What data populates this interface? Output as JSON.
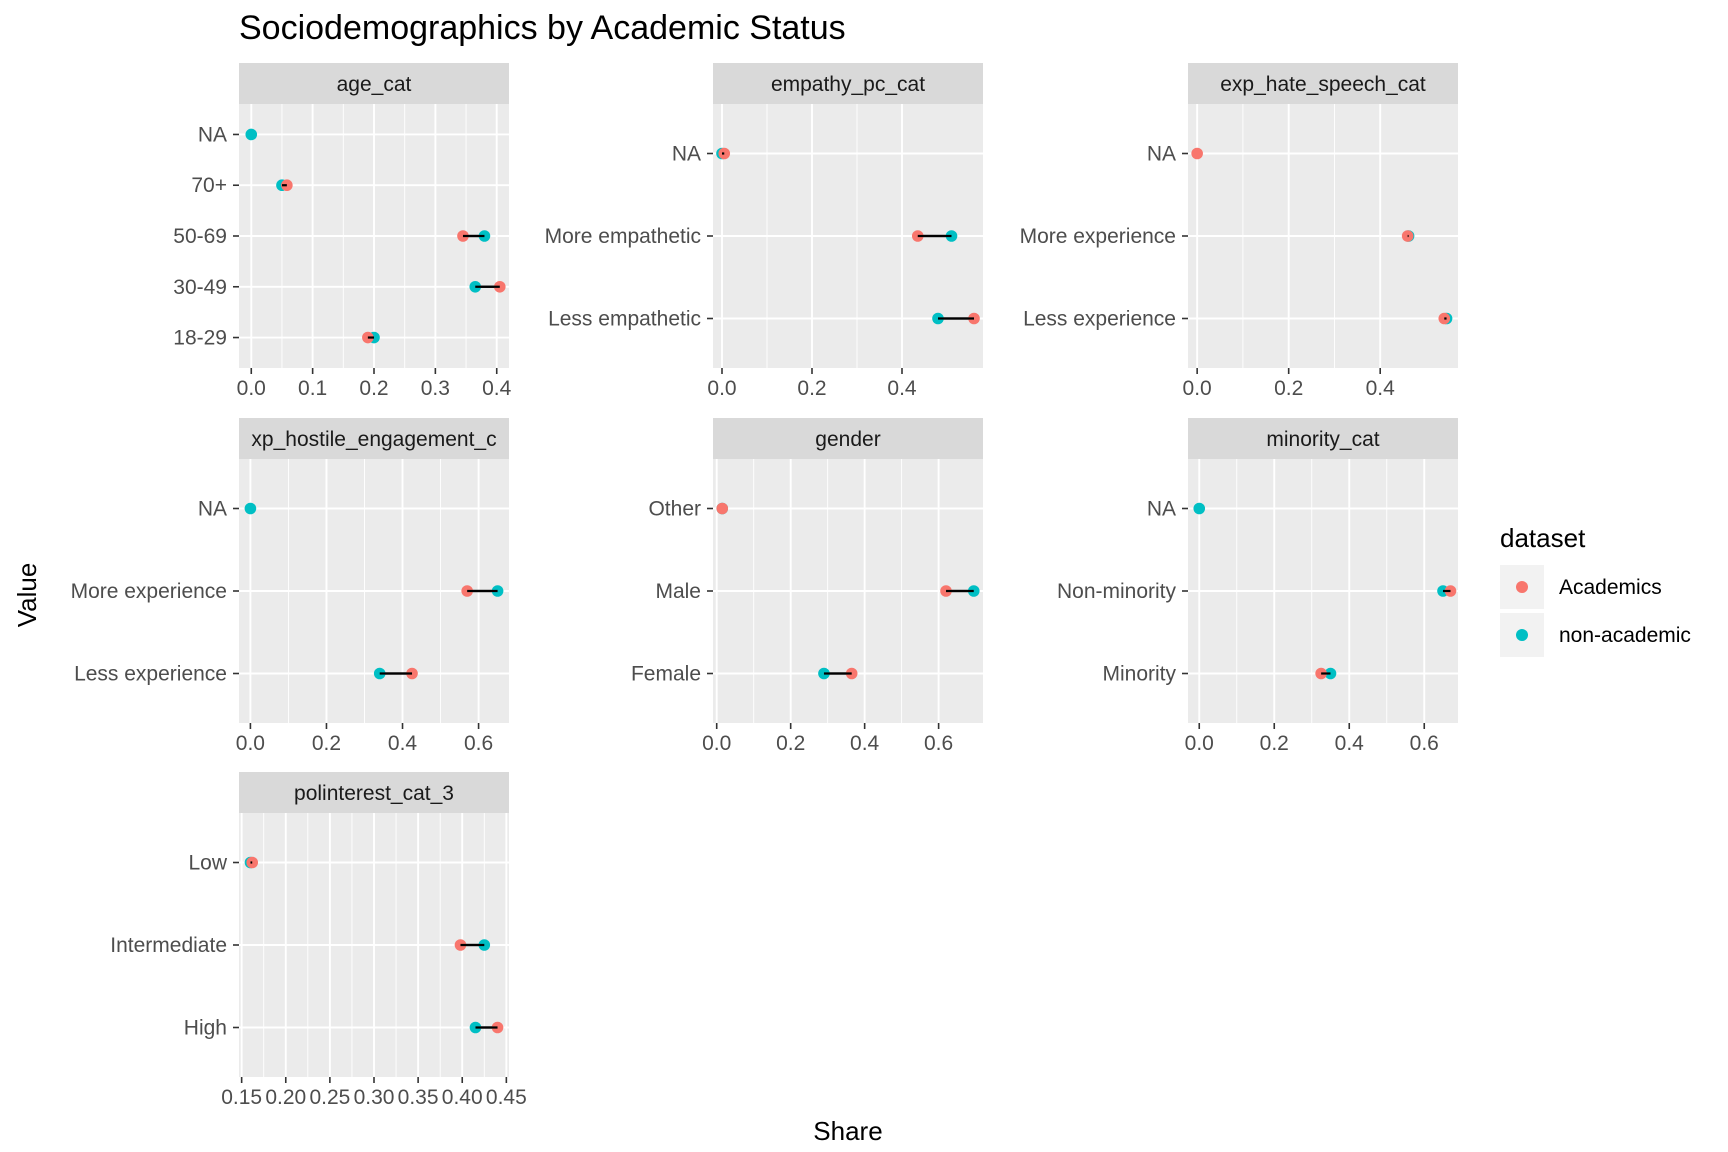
{
  "chart_data": {
    "type": "scatter",
    "title": "Sociodemographics by Academic Status",
    "xlabel": "Share",
    "ylabel": "Value",
    "legend": {
      "title": "dataset",
      "position": "right",
      "entries": [
        {
          "name": "Academics",
          "color": "#F8766D"
        },
        {
          "name": "non-academic",
          "color": "#00BFC4"
        }
      ]
    },
    "segment_color": "#000000",
    "panel_background": "#EBEBEB",
    "strip_background": "#D9D9D9",
    "panels": [
      {
        "strip": "age_cat",
        "xlim": [
          -0.02,
          0.42
        ],
        "xticks": [
          0.0,
          0.1,
          0.2,
          0.3,
          0.4
        ],
        "xtick_labels": [
          "0.0",
          "0.1",
          "0.2",
          "0.3",
          "0.4"
        ],
        "categories": [
          "18-29",
          "30-49",
          "50-69",
          "70+",
          "NA"
        ],
        "academics": [
          0.19,
          0.405,
          0.345,
          0.058,
          null
        ],
        "non_academic": [
          0.2,
          0.365,
          0.38,
          0.05,
          0.0
        ]
      },
      {
        "strip": "empathy_pc_cat",
        "xlim": [
          -0.02,
          0.58
        ],
        "xticks": [
          0.0,
          0.2,
          0.4
        ],
        "xtick_labels": [
          "0.0",
          "0.2",
          "0.4"
        ],
        "categories": [
          "Less empathetic",
          "More empathetic",
          "NA"
        ],
        "academics": [
          0.56,
          0.435,
          0.005
        ],
        "non_academic": [
          0.48,
          0.51,
          0.0
        ]
      },
      {
        "strip": "exp_hate_speech_cat",
        "xlim": [
          -0.02,
          0.57
        ],
        "xticks": [
          0.0,
          0.2,
          0.4
        ],
        "xtick_labels": [
          "0.0",
          "0.2",
          "0.4"
        ],
        "categories": [
          "Less experience",
          "More experience",
          "NA"
        ],
        "academics": [
          0.54,
          0.46,
          0.0
        ],
        "non_academic": [
          0.545,
          0.462,
          null
        ]
      },
      {
        "strip": "exp_hostile_engagement_cat",
        "strip_visible": "xp_hostile_engagement_c",
        "xlim": [
          -0.03,
          0.68
        ],
        "xticks": [
          0.0,
          0.2,
          0.4,
          0.6
        ],
        "xtick_labels": [
          "0.0",
          "0.2",
          "0.4",
          "0.6"
        ],
        "categories": [
          "Less experience",
          "More experience",
          "NA"
        ],
        "academics": [
          0.425,
          0.57,
          null
        ],
        "non_academic": [
          0.34,
          0.65,
          0.0
        ]
      },
      {
        "strip": "gender",
        "xlim": [
          -0.01,
          0.72
        ],
        "xticks": [
          0.0,
          0.2,
          0.4,
          0.6
        ],
        "xtick_labels": [
          "0.0",
          "0.2",
          "0.4",
          "0.6"
        ],
        "categories": [
          "Female",
          "Male",
          "Other"
        ],
        "academics": [
          0.365,
          0.62,
          0.015
        ],
        "non_academic": [
          0.29,
          0.695,
          0.015
        ]
      },
      {
        "strip": "minority_cat",
        "xlim": [
          -0.03,
          0.69
        ],
        "xticks": [
          0.0,
          0.2,
          0.4,
          0.6
        ],
        "xtick_labels": [
          "0.0",
          "0.2",
          "0.4",
          "0.6"
        ],
        "categories": [
          "Minority",
          "Non-minority",
          "NA"
        ],
        "academics": [
          0.325,
          0.67,
          null
        ],
        "non_academic": [
          0.35,
          0.65,
          0.0
        ]
      },
      {
        "strip": "polinterest_cat_3",
        "xlim": [
          0.147,
          0.453
        ],
        "xticks": [
          0.15,
          0.2,
          0.25,
          0.3,
          0.35,
          0.4,
          0.45
        ],
        "xtick_labels": [
          "0.15",
          "0.20",
          "0.25",
          "0.30",
          "0.35",
          "0.40",
          "0.45"
        ],
        "categories": [
          "High",
          "Intermediate",
          "Low"
        ],
        "academics": [
          0.44,
          0.398,
          0.162
        ],
        "non_academic": [
          0.415,
          0.425,
          0.16
        ]
      }
    ]
  }
}
